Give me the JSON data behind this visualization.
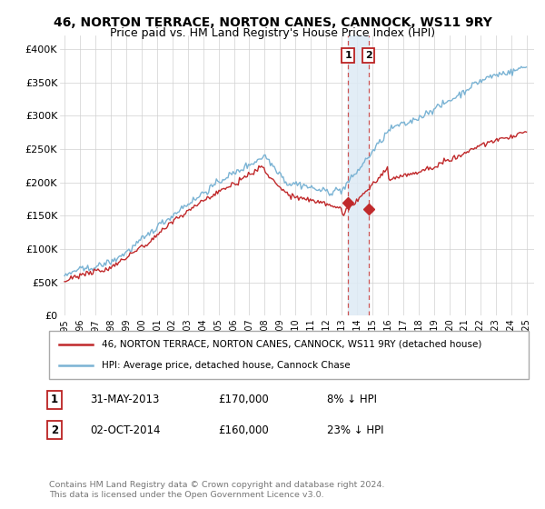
{
  "title": "46, NORTON TERRACE, NORTON CANES, CANNOCK, WS11 9RY",
  "subtitle": "Price paid vs. HM Land Registry's House Price Index (HPI)",
  "ylabel_ticks": [
    "£0",
    "£50K",
    "£100K",
    "£150K",
    "£200K",
    "£250K",
    "£300K",
    "£350K",
    "£400K"
  ],
  "ytick_values": [
    0,
    50000,
    100000,
    150000,
    200000,
    250000,
    300000,
    350000,
    400000
  ],
  "ylim": [
    0,
    420000
  ],
  "xlim_start": 1994.7,
  "xlim_end": 2025.5,
  "hpi_color": "#7ab3d4",
  "price_color": "#c0292b",
  "vline_color": "#cc5555",
  "highlight_fill": "#ddeaf5",
  "transaction1_date": 2013.41,
  "transaction1_price": 170000,
  "transaction1_label": "1",
  "transaction2_date": 2014.75,
  "transaction2_price": 160000,
  "transaction2_label": "2",
  "legend_line1": "46, NORTON TERRACE, NORTON CANES, CANNOCK, WS11 9RY (detached house)",
  "legend_line2": "HPI: Average price, detached house, Cannock Chase",
  "note1_num": "1",
  "note1_date": "31-MAY-2013",
  "note1_price": "£170,000",
  "note1_hpi": "8% ↓ HPI",
  "note2_num": "2",
  "note2_date": "02-OCT-2014",
  "note2_price": "£160,000",
  "note2_hpi": "23% ↓ HPI",
  "copyright": "Contains HM Land Registry data © Crown copyright and database right 2024.\nThis data is licensed under the Open Government Licence v3.0."
}
